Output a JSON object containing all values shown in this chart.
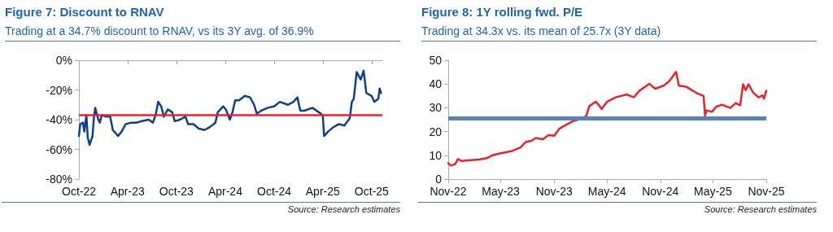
{
  "chart_data": [
    {
      "type": "line",
      "title": "Figure 7: Discount to RNAV",
      "subtitle": "Trading at a 34.7% discount to RNAV, vs its 3Y avg. of 36.9%",
      "annotations": [
        "Source: Research estimates"
      ],
      "xlim": [
        "2022-10-01",
        "2025-11-10"
      ],
      "xticks": [
        {
          "value": "2022-10-01",
          "label": "Oct-22"
        },
        {
          "value": "2023-04-01",
          "label": "Apr-23"
        },
        {
          "value": "2023-10-01",
          "label": "Oct-23"
        },
        {
          "value": "2024-04-01",
          "label": "Apr-24"
        },
        {
          "value": "2024-10-01",
          "label": "Oct-24"
        },
        {
          "value": "2025-04-01",
          "label": "Apr-25"
        },
        {
          "value": "2025-10-01",
          "label": "Oct-25"
        }
      ],
      "ylim": [
        -80,
        0
      ],
      "yticks": [
        {
          "value": -80,
          "label": "-80%"
        },
        {
          "value": -60,
          "label": "-60%"
        },
        {
          "value": -40,
          "label": "-40%"
        },
        {
          "value": -20,
          "label": "-20%"
        },
        {
          "value": 0,
          "label": "0%"
        }
      ],
      "grid": false,
      "marker": "none",
      "line_style": "solid",
      "ref_lines": [
        {
          "axis": "y",
          "value": -36.9,
          "label": null,
          "color": "#e8232a"
        }
      ],
      "series": [
        {
          "color": "#0d3f8f",
          "x": [
            "2022-10-01",
            "2022-10-06",
            "2022-10-16",
            "2022-10-21",
            "2022-10-29",
            "2022-11-03",
            "2022-11-10",
            "2022-11-21",
            "2022-11-26",
            "2022-12-01",
            "2022-12-11",
            "2022-12-18",
            "2022-12-26",
            "2023-01-11",
            "2023-01-26",
            "2023-02-05",
            "2023-02-15",
            "2023-02-24",
            "2023-03-10",
            "2023-03-25",
            "2023-04-15",
            "2023-05-05",
            "2023-05-25",
            "2023-06-20",
            "2023-07-05",
            "2023-07-15",
            "2023-07-25",
            "2023-08-05",
            "2023-08-15",
            "2023-08-30",
            "2023-09-15",
            "2023-09-25",
            "2023-10-14",
            "2023-11-04",
            "2023-11-14",
            "2023-12-04",
            "2023-12-24",
            "2024-01-14",
            "2024-02-03",
            "2024-02-24",
            "2024-03-04",
            "2024-03-24",
            "2024-04-03",
            "2024-04-18",
            "2024-04-28",
            "2024-05-08",
            "2024-05-23",
            "2024-06-13",
            "2024-07-03",
            "2024-07-18",
            "2024-07-28",
            "2024-08-13",
            "2024-09-07",
            "2024-10-02",
            "2024-10-22",
            "2024-11-22",
            "2024-12-12",
            "2024-12-27",
            "2025-01-07",
            "2025-01-22",
            "2025-02-22",
            "2025-03-17",
            "2025-04-01",
            "2025-04-06",
            "2025-04-21",
            "2025-05-11",
            "2025-06-01",
            "2025-06-21",
            "2025-07-11",
            "2025-07-19",
            "2025-07-26",
            "2025-08-06",
            "2025-08-21",
            "2025-09-01",
            "2025-09-11",
            "2025-10-01",
            "2025-10-11",
            "2025-10-26",
            "2025-10-31",
            "2025-11-05"
          ],
          "values": [
            -51,
            -43,
            -42,
            -48,
            -37,
            -52,
            -57,
            -51,
            -39,
            -32,
            -39,
            -42,
            -37,
            -38,
            -38,
            -47,
            -49,
            -51,
            -48,
            -43,
            -42,
            -42,
            -41,
            -40,
            -42,
            -37,
            -28,
            -31,
            -38,
            -33,
            -35,
            -41,
            -40,
            -38,
            -43,
            -43,
            -46,
            -47,
            -45,
            -42,
            -35,
            -31,
            -33,
            -40,
            -35,
            -27,
            -27,
            -24,
            -25,
            -30,
            -36,
            -34,
            -32,
            -31,
            -28,
            -30,
            -28,
            -25,
            -34,
            -34,
            -32,
            -35,
            -37,
            -51,
            -48,
            -45,
            -43,
            -44,
            -39,
            -28,
            -26,
            -8,
            -13,
            -7,
            -22,
            -24,
            -28,
            -26,
            -19,
            -22
          ]
        }
      ]
    },
    {
      "type": "line",
      "title": "Figure 8: 1Y rolling fwd. P/E",
      "subtitle": "Trading at 34.3x vs. its mean of 25.7x (3Y data)",
      "annotations": [
        "Source: Research estimates"
      ],
      "xlim": [
        "2022-11-01",
        "2025-11-01"
      ],
      "xticks": [
        {
          "value": "2022-11-01",
          "label": "Nov-22"
        },
        {
          "value": "2023-05-01",
          "label": "May-23"
        },
        {
          "value": "2023-11-01",
          "label": "Nov-23"
        },
        {
          "value": "2024-05-01",
          "label": "May-24"
        },
        {
          "value": "2024-11-01",
          "label": "Nov-24"
        },
        {
          "value": "2025-05-01",
          "label": "May-25"
        },
        {
          "value": "2025-11-01",
          "label": "Nov-25"
        }
      ],
      "ylim": [
        0,
        50
      ],
      "yticks": [
        0,
        10,
        20,
        30,
        40,
        50
      ],
      "grid": false,
      "marker": "none",
      "line_style": "solid",
      "ref_lines": [
        {
          "axis": "y",
          "value": 25.7,
          "label": null,
          "color": "#5b82b8"
        }
      ],
      "series": [
        {
          "color": "#e8232a",
          "x": [
            "2022-11-01",
            "2022-11-10",
            "2022-11-25",
            "2022-12-04",
            "2022-12-18",
            "2023-01-07",
            "2023-02-15",
            "2023-03-14",
            "2023-04-02",
            "2023-05-01",
            "2023-06-09",
            "2023-07-08",
            "2023-07-27",
            "2023-08-15",
            "2023-08-30",
            "2023-09-23",
            "2023-10-12",
            "2023-11-01",
            "2023-11-20",
            "2023-12-14",
            "2024-01-08",
            "2024-01-22",
            "2024-02-06",
            "2024-02-20",
            "2024-03-01",
            "2024-03-24",
            "2024-04-13",
            "2024-05-02",
            "2024-05-31",
            "2024-07-09",
            "2024-08-02",
            "2024-08-21",
            "2024-09-24",
            "2024-10-14",
            "2024-11-12",
            "2024-12-01",
            "2024-12-25",
            "2025-01-04",
            "2025-01-28",
            "2025-03-06",
            "2025-03-30",
            "2025-04-04",
            "2025-04-09",
            "2025-04-28",
            "2025-05-12",
            "2025-06-01",
            "2025-06-30",
            "2025-07-19",
            "2025-08-03",
            "2025-08-13",
            "2025-08-22",
            "2025-09-01",
            "2025-09-16",
            "2025-10-05",
            "2025-10-19",
            "2025-10-24",
            "2025-11-01"
          ],
          "values": [
            6.7,
            5.7,
            6.3,
            8.4,
            7.6,
            7.9,
            8.2,
            8.8,
            10,
            10.9,
            11.8,
            13.3,
            15.7,
            16.1,
            17.3,
            16.7,
            18.5,
            18.2,
            21.3,
            23,
            24.5,
            25,
            25.5,
            26.7,
            30.7,
            32.6,
            29.5,
            32.6,
            34.4,
            35.6,
            34.4,
            37.2,
            40.1,
            38,
            39.3,
            41.1,
            45.1,
            39.3,
            38.9,
            36.2,
            35,
            26.7,
            28.9,
            28.3,
            30.4,
            31.3,
            29.9,
            32,
            31,
            39.9,
            37.4,
            39.9,
            36.5,
            34.4,
            35.2,
            33.8,
            37.2
          ]
        }
      ]
    }
  ]
}
